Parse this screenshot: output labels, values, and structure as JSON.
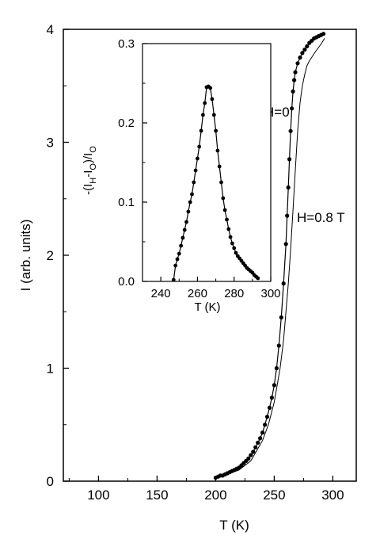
{
  "chart_data": [
    {
      "type": "line",
      "xlabel": "T (K)",
      "ylabel": "I  (arb. units)",
      "xlim": [
        70,
        320
      ],
      "ylim": [
        0,
        4
      ],
      "xticks": [
        100,
        150,
        200,
        250,
        300
      ],
      "yticks": [
        0,
        1,
        2,
        3,
        4
      ],
      "series": [
        {
          "name": "H=0",
          "style": "markers-line",
          "x": [
            200,
            202,
            204,
            206,
            208,
            210,
            212,
            214,
            216,
            218,
            220,
            222,
            224,
            226,
            228,
            230,
            232,
            234,
            236,
            238,
            240,
            242,
            244,
            246,
            248,
            250,
            252,
            254,
            256,
            258,
            260,
            261,
            262,
            263,
            264,
            265,
            266,
            267,
            268,
            270,
            272,
            274,
            276,
            278,
            280,
            282,
            284,
            286,
            288,
            290,
            292
          ],
          "y": [
            0.03,
            0.04,
            0.05,
            0.05,
            0.06,
            0.07,
            0.08,
            0.09,
            0.1,
            0.11,
            0.12,
            0.14,
            0.16,
            0.18,
            0.2,
            0.23,
            0.26,
            0.3,
            0.34,
            0.38,
            0.43,
            0.5,
            0.57,
            0.65,
            0.74,
            0.85,
            1.0,
            1.2,
            1.45,
            1.75,
            2.1,
            2.35,
            2.6,
            2.85,
            3.1,
            3.3,
            3.45,
            3.55,
            3.62,
            3.7,
            3.75,
            3.79,
            3.82,
            3.85,
            3.88,
            3.9,
            3.92,
            3.93,
            3.94,
            3.95,
            3.96
          ]
        },
        {
          "name": "H=0.8 T",
          "style": "line",
          "x": [
            200,
            210,
            220,
            230,
            240,
            245,
            250,
            255,
            258,
            260,
            262,
            264,
            266,
            268,
            270,
            272,
            274,
            276,
            278,
            280,
            285,
            290,
            293
          ],
          "y": [
            0.02,
            0.06,
            0.1,
            0.18,
            0.36,
            0.5,
            0.7,
            1.0,
            1.25,
            1.5,
            1.75,
            2.05,
            2.4,
            2.75,
            3.1,
            3.35,
            3.5,
            3.6,
            3.68,
            3.72,
            3.8,
            3.87,
            3.92
          ]
        }
      ],
      "annotations": [
        "H=0",
        "H=0.8 T"
      ]
    },
    {
      "type": "line",
      "inset": true,
      "xlabel": "T (K)",
      "ylabel_parts": [
        "-(I",
        "H",
        "-I",
        "O",
        ")/I",
        "O"
      ],
      "xlim": [
        230,
        300
      ],
      "ylim": [
        0,
        0.3
      ],
      "xticks": [
        240,
        260,
        280,
        300
      ],
      "yticks": [
        "0.0",
        "0.1",
        "0.2",
        "0.3"
      ],
      "series": [
        {
          "style": "markers-line",
          "x": [
            247,
            248,
            249,
            250,
            251,
            252,
            253,
            254,
            255,
            256,
            257,
            258,
            259,
            260,
            261,
            262,
            263,
            264,
            265,
            266,
            267,
            268,
            269,
            270,
            271,
            272,
            273,
            274,
            275,
            276,
            277,
            278,
            279,
            280,
            281,
            282,
            283,
            284,
            285,
            286,
            287,
            288,
            289,
            290,
            291,
            292,
            293
          ],
          "y": [
            0.002,
            0.02,
            0.028,
            0.035,
            0.045,
            0.055,
            0.065,
            0.075,
            0.088,
            0.1,
            0.11,
            0.125,
            0.14,
            0.155,
            0.17,
            0.19,
            0.21,
            0.225,
            0.245,
            0.246,
            0.244,
            0.23,
            0.21,
            0.19,
            0.165,
            0.145,
            0.125,
            0.105,
            0.09,
            0.078,
            0.066,
            0.056,
            0.048,
            0.042,
            0.036,
            0.032,
            0.029,
            0.026,
            0.023,
            0.02,
            0.017,
            0.015,
            0.013,
            0.011,
            0.008,
            0.006,
            0.004
          ]
        }
      ]
    }
  ]
}
